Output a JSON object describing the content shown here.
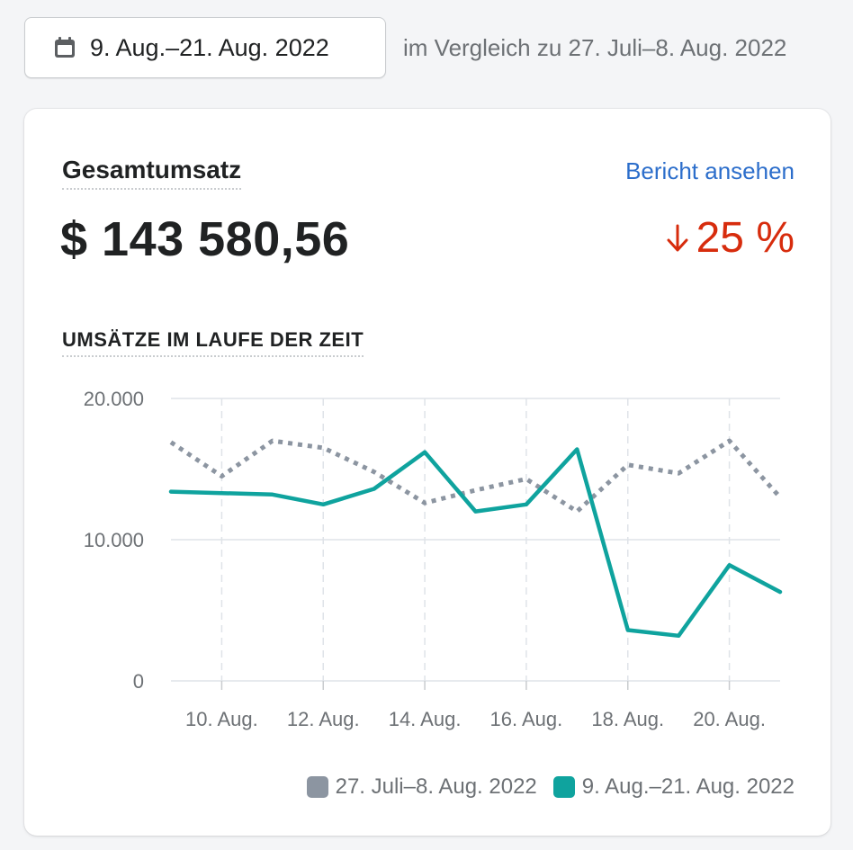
{
  "date_range": {
    "label": "9. Aug.–21. Aug. 2022",
    "icon": "calendar-icon"
  },
  "comparison_text": "im Vergleich zu 27. Juli–8. Aug. 2022",
  "card": {
    "metric_title": "Gesamtumsatz",
    "report_link": "Bericht ansehen",
    "total_value": "$ 143 580,56",
    "change_percent": "25 %",
    "change_direction": "down",
    "chart_title": "UMSÄTZE IM LAUFE DER ZEIT"
  },
  "colors": {
    "current": "#0fa39e",
    "previous": "#8c95a1",
    "negative": "#d72c0d",
    "link": "#2c6ecb"
  },
  "chart_data": {
    "type": "line",
    "title": "UMSÄTZE IM LAUFE DER ZEIT",
    "x": [
      "9",
      "10",
      "11",
      "12",
      "13",
      "14",
      "15",
      "16",
      "17",
      "18",
      "19",
      "20",
      "21"
    ],
    "x_tick_labels": [
      "10. Aug.",
      "12. Aug.",
      "14. Aug.",
      "16. Aug.",
      "18. Aug.",
      "20. Aug."
    ],
    "y_tick_labels": [
      "20.000",
      "10.000",
      "0"
    ],
    "ylim": [
      0,
      20000
    ],
    "grid": true,
    "legend_position": "bottom-right",
    "series": [
      {
        "name": "27. Juli–8. Aug. 2022",
        "style": "dotted",
        "values": [
          16900,
          14500,
          17000,
          16500,
          14800,
          12600,
          13500,
          14300,
          12000,
          15300,
          14700,
          17000,
          13000
        ]
      },
      {
        "name": "9. Aug.–21. Aug. 2022",
        "style": "solid",
        "values": [
          13400,
          13300,
          13200,
          12500,
          13600,
          16200,
          12000,
          12500,
          16400,
          3600,
          3200,
          8200,
          6300
        ]
      }
    ]
  }
}
